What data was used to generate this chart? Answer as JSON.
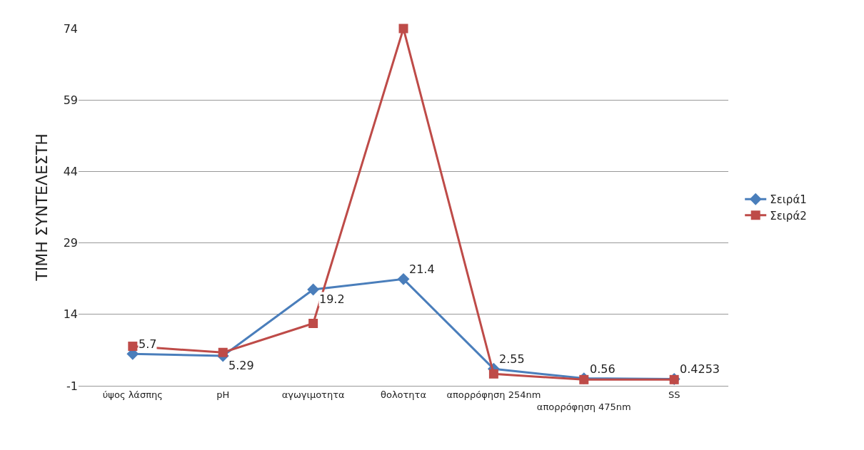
{
  "chart_data": {
    "type": "line",
    "ylabel": "ΤΙΜΗ ΣΥΝΤΕΛΕΣΤΗ",
    "categories": [
      "ύψος λάσπης",
      "pH",
      "αγωγιμοτητα",
      "θολοτητα",
      "απορρόφηση 254nm",
      "απορρόφηση 475nm",
      "SS"
    ],
    "series": [
      {
        "name": "Σειρά1",
        "color": "#4a7ebb",
        "marker": "diamond",
        "values": [
          5.7,
          5.29,
          19.2,
          21.4,
          2.55,
          0.56,
          0.4253
        ],
        "value_labels": [
          "5.7",
          "5.29",
          "19.2",
          "21.4",
          "2.55",
          "0.56",
          "0.4253"
        ]
      },
      {
        "name": "Σειρά2",
        "color": "#be4b48",
        "marker": "square",
        "values": [
          7.3,
          6.0,
          12.1,
          74,
          1.5,
          0.3,
          0.3
        ]
      }
    ],
    "ylim": [
      -1,
      74
    ],
    "yticks": [
      -1,
      14,
      29,
      44,
      59,
      74
    ],
    "grid": "y",
    "legend": "right",
    "line_style": "solid"
  }
}
